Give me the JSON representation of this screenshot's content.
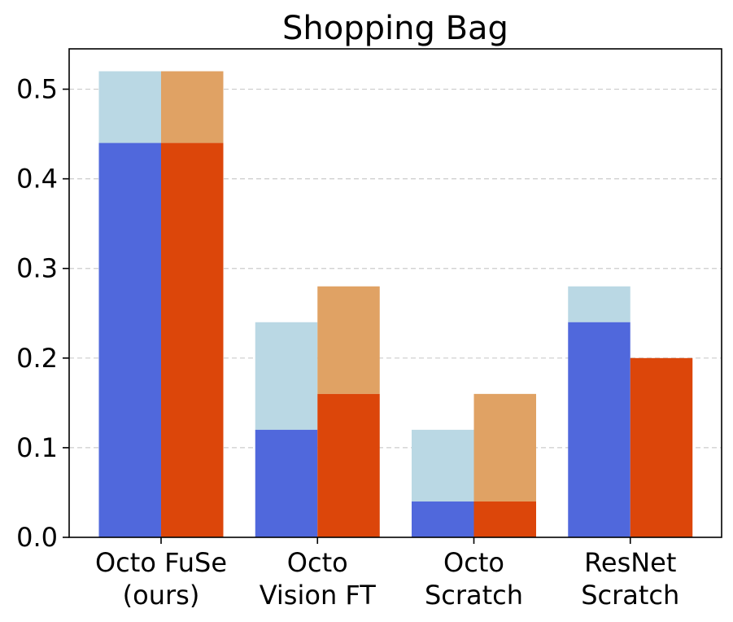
{
  "chart_data": {
    "type": "bar",
    "title": "Shopping Bag",
    "xlabel": "",
    "ylabel": "",
    "ylim": [
      0,
      0.545
    ],
    "yticks": [
      "0.0",
      "0.1",
      "0.2",
      "0.3",
      "0.4",
      "0.5"
    ],
    "grid": "horizontal dashed",
    "categories": [
      [
        "Octo FuSe",
        "(ours)"
      ],
      [
        "Octo",
        "Vision FT"
      ],
      [
        "Octo",
        "Scratch"
      ],
      [
        "ResNet",
        "Scratch"
      ]
    ],
    "groups": [
      {
        "base": [
          0.44,
          0.12,
          0.04,
          0.24
        ],
        "top": [
          0.52,
          0.24,
          0.12,
          0.28
        ],
        "base_color": "#5068dc",
        "top_color": "#bad8e4"
      },
      {
        "base": [
          0.44,
          0.16,
          0.04,
          0.2
        ],
        "top": [
          0.52,
          0.28,
          0.16,
          0.2
        ],
        "base_color": "#dc460a",
        "top_color": "#e0a264"
      }
    ]
  }
}
